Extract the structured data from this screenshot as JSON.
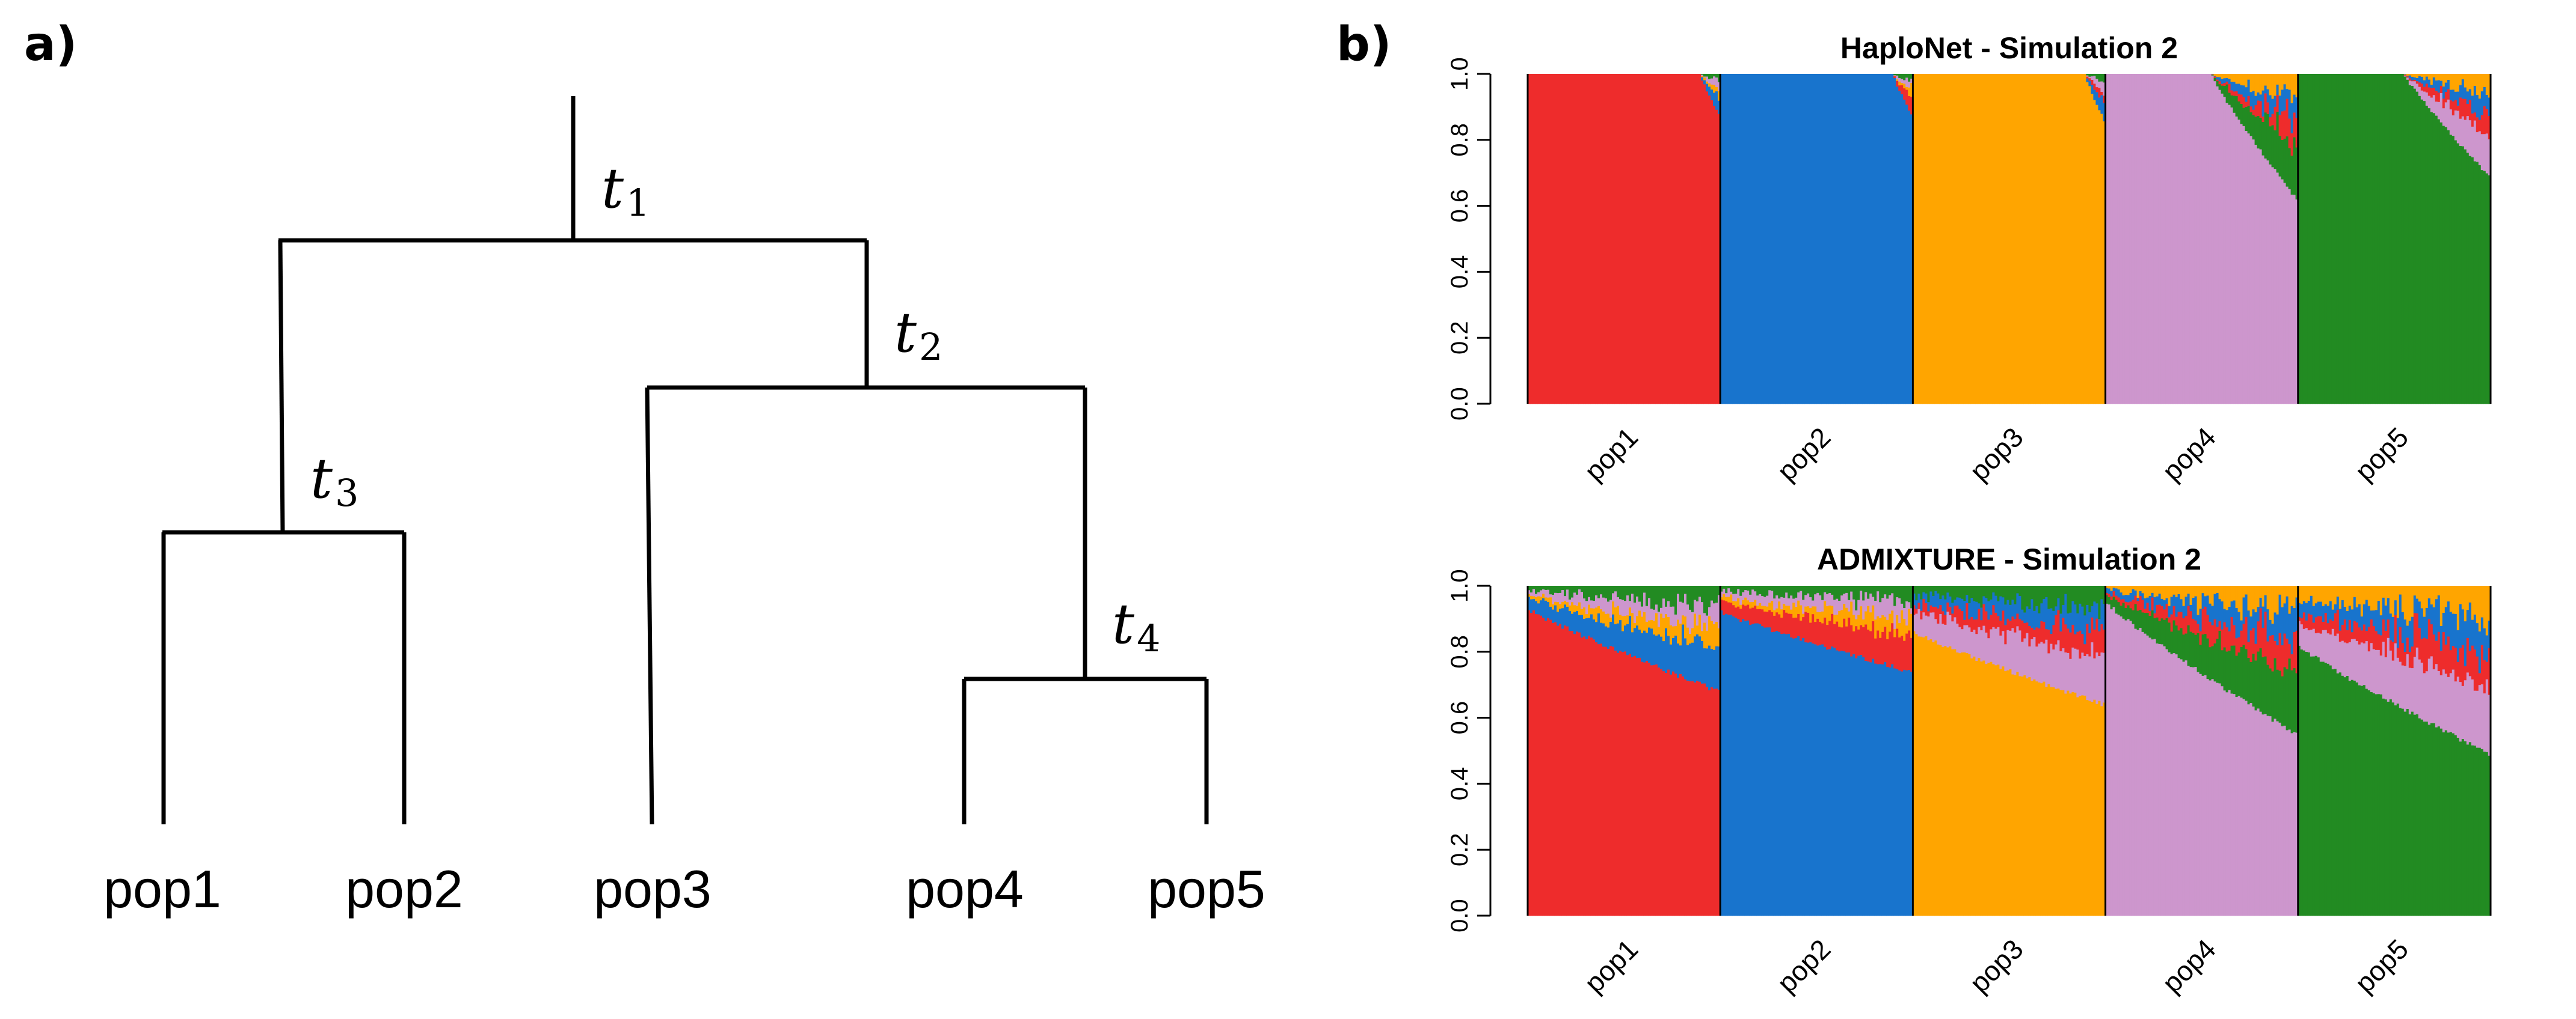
{
  "panel_a": {
    "label": "a)",
    "tree": {
      "leaves": [
        "pop1",
        "pop2",
        "pop3",
        "pop4",
        "pop5"
      ],
      "nodes": [
        {
          "name": "t",
          "sub": "1"
        },
        {
          "name": "t",
          "sub": "2"
        },
        {
          "name": "t",
          "sub": "3"
        },
        {
          "name": "t",
          "sub": "4"
        }
      ]
    }
  },
  "panel_b": {
    "label": "b)"
  },
  "colors": {
    "pop1": "#EE2C2C",
    "pop2": "#1874CD",
    "pop3": "#FFA500",
    "pop4": "#CD96CD",
    "pop5": "#228B22"
  },
  "chart_data": [
    {
      "type": "bar",
      "stacked": true,
      "title": "HaploNet - Simulation 2",
      "categories": [
        "pop1",
        "pop2",
        "pop3",
        "pop4",
        "pop5"
      ],
      "ylim": [
        0,
        1
      ],
      "yticks": [
        "0.0",
        "0.2",
        "0.4",
        "0.6",
        "0.8",
        "1.0"
      ],
      "grid": false,
      "main_ancestry_range": [
        [
          1.0,
          0.88
        ],
        [
          1.0,
          0.88
        ],
        [
          1.0,
          0.86
        ],
        [
          1.0,
          0.62
        ],
        [
          1.0,
          0.69
        ]
      ]
    },
    {
      "type": "bar",
      "stacked": true,
      "title": "ADMIXTURE - Simulation 2",
      "categories": [
        "pop1",
        "pop2",
        "pop3",
        "pop4",
        "pop5"
      ],
      "ylim": [
        0,
        1
      ],
      "yticks": [
        "0.0",
        "0.2",
        "0.4",
        "0.6",
        "0.8",
        "1.0"
      ],
      "grid": false,
      "main_ancestry_range": [
        [
          0.93,
          0.68
        ],
        [
          0.92,
          0.74
        ],
        [
          0.86,
          0.64
        ],
        [
          0.95,
          0.55
        ],
        [
          0.82,
          0.49
        ]
      ]
    }
  ]
}
